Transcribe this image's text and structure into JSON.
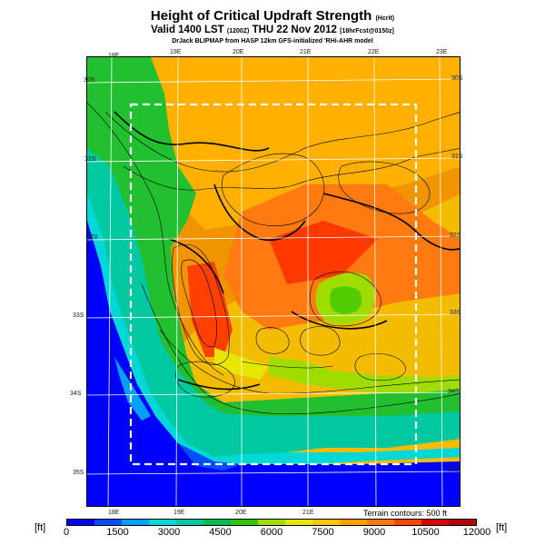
{
  "title_main": "Height of Critical Updraft Strength",
  "title_main_tag": "(Hcrit)",
  "title_valid": "Valid 1400 LST",
  "title_valid_tag": "(1200Z)",
  "title_date": "THU 22 Nov 2012",
  "title_run": "[18hrFcst@0150z]",
  "credit": "DrJack BLIPMAP from HASP 12km GFS-initialized 'RHi-AHR model",
  "lon_labels": [
    "18E",
    "19E",
    "20E",
    "21E",
    "22E",
    "23E"
  ],
  "lat_labels": [
    "30S",
    "31S",
    "32S",
    "33S",
    "34S",
    "35S"
  ],
  "terrain_note": "Terrain contours: 500 ft",
  "unit": "[ft]",
  "colorbar": {
    "colors": [
      "#0000ff",
      "#0050ff",
      "#00a0ff",
      "#00d7d7",
      "#00c8a0",
      "#00be50",
      "#32c800",
      "#a0dc00",
      "#e6e600",
      "#ffc800",
      "#ffa000",
      "#ff7800",
      "#ff4600",
      "#dc0000",
      "#b40000"
    ],
    "ticks": [
      "0",
      "1500",
      "3000",
      "4500",
      "6000",
      "7500",
      "9000",
      "10500",
      "12000"
    ]
  }
}
